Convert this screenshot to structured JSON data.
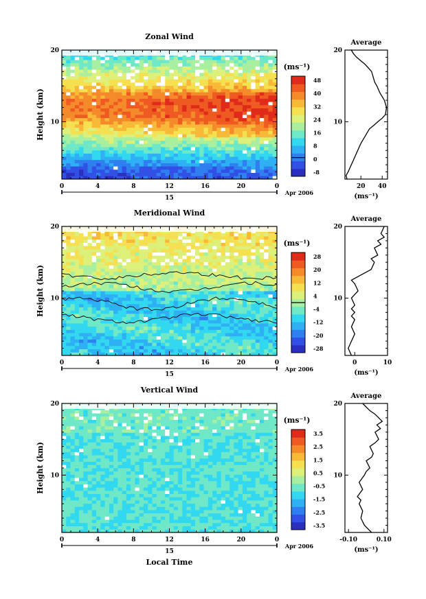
{
  "figure": {
    "date_label": "Apr 2006",
    "day_label": "15",
    "xlabel_bottom": "Local Time",
    "unit_label": "(ms⁻¹)"
  },
  "chart_data": [
    {
      "type": "heatmap",
      "title": "Zonal Wind",
      "xlabel": "Local Time",
      "ylabel": "Height (km)",
      "x_ticks": [
        "0",
        "4",
        "8",
        "12",
        "16",
        "20",
        "0"
      ],
      "xlim": [
        0,
        24
      ],
      "ylim": [
        2,
        20
      ],
      "y_ticks": [
        "10",
        "20"
      ],
      "colorbar": {
        "unit": "(ms⁻¹)",
        "min": -12,
        "max": 52,
        "ticks": [
          "48",
          "40",
          "32",
          "24",
          "16",
          "8",
          "0",
          "-8"
        ]
      },
      "profile": {
        "type": "line",
        "title": "Average",
        "xlabel": "(ms⁻¹)",
        "x_ticks": [
          "20",
          "40"
        ],
        "xlim": [
          5,
          45
        ],
        "ylim": [
          2,
          20
        ],
        "y_ticks": [
          "10",
          "20"
        ],
        "x": [
          7,
          6,
          8,
          11,
          14,
          17,
          20,
          24,
          28,
          32,
          36,
          40,
          43,
          44,
          42,
          38,
          35,
          33,
          32,
          30,
          27,
          24,
          20,
          16,
          13,
          11,
          12
        ],
        "y": [
          2,
          2.5,
          3,
          4,
          5,
          6,
          7,
          8,
          9,
          9.5,
          10,
          10.5,
          11,
          12,
          13,
          14,
          15,
          15.5,
          16,
          17,
          17.5,
          18,
          18.5,
          19,
          19.5,
          20,
          20
        ]
      }
    },
    {
      "type": "heatmap",
      "title": "Meridional Wind",
      "xlabel": "Local Time",
      "ylabel": "Height (km)",
      "x_ticks": [
        "0",
        "4",
        "8",
        "12",
        "16",
        "20",
        "0"
      ],
      "xlim": [
        0,
        24
      ],
      "ylim": [
        2,
        20
      ],
      "y_ticks": [
        "10",
        "20"
      ],
      "colorbar": {
        "unit": "(ms⁻¹)",
        "min": -30,
        "max": 30,
        "ticks": [
          "28",
          "20",
          "12",
          "4",
          "-4",
          "-12",
          "-20",
          "-28"
        ]
      },
      "profile": {
        "type": "line",
        "title": "Average",
        "xlabel": "(ms⁻¹)",
        "x_ticks": [
          "0",
          "10"
        ],
        "xlim": [
          -3,
          10
        ],
        "ylim": [
          2,
          20
        ],
        "y_ticks": [
          "10",
          "20"
        ],
        "x": [
          -1,
          -2,
          -1,
          0,
          -1,
          0,
          -1,
          0,
          -1,
          0,
          -1,
          0,
          1,
          0,
          -1,
          1,
          3,
          5,
          6,
          5,
          7,
          6,
          8,
          7,
          9,
          8,
          9
        ],
        "y": [
          2,
          3,
          4,
          5,
          6,
          7,
          7.5,
          8,
          8.5,
          9,
          10,
          10.5,
          11,
          12,
          12.5,
          13,
          13.5,
          14,
          15,
          15.5,
          16,
          17,
          17.5,
          18,
          18.5,
          19,
          20
        ]
      }
    },
    {
      "type": "heatmap",
      "title": "Vertical Wind",
      "xlabel": "Local Time",
      "ylabel": "Height (km)",
      "x_ticks": [
        "0",
        "4",
        "8",
        "12",
        "16",
        "20",
        "0"
      ],
      "xlim": [
        0,
        24
      ],
      "ylim": [
        2,
        20
      ],
      "y_ticks": [
        "10",
        "20"
      ],
      "colorbar": {
        "unit": "(ms⁻¹)",
        "min": -4,
        "max": 4,
        "ticks": [
          "3.5",
          "2.5",
          "1.5",
          "0.5",
          "-0.5",
          "-1.5",
          "-2.5",
          "-3.5"
        ]
      },
      "profile": {
        "type": "line",
        "title": "Average",
        "xlabel": "(ms⁻¹)",
        "x_ticks": [
          "-0.10",
          "0.10"
        ],
        "xlim": [
          -0.12,
          0.12
        ],
        "ylim": [
          2,
          20
        ],
        "y_ticks": [
          "10",
          "20"
        ],
        "x": [
          0.03,
          0.01,
          -0.01,
          -0.03,
          -0.02,
          -0.04,
          -0.03,
          -0.05,
          -0.02,
          -0.04,
          -0.01,
          0.0,
          0.02,
          0.0,
          0.03,
          0.04,
          0.02,
          0.05,
          0.07,
          0.05,
          0.08,
          0.06,
          0.09,
          0.07,
          0.05,
          0.02,
          -0.02
        ],
        "y": [
          2,
          2.5,
          3,
          4,
          5,
          6,
          6.5,
          7,
          8,
          9,
          10,
          10.5,
          11,
          12,
          12.5,
          13,
          14,
          14.5,
          15,
          16,
          16.5,
          17,
          17.5,
          18,
          18.5,
          19,
          20
        ]
      }
    }
  ]
}
